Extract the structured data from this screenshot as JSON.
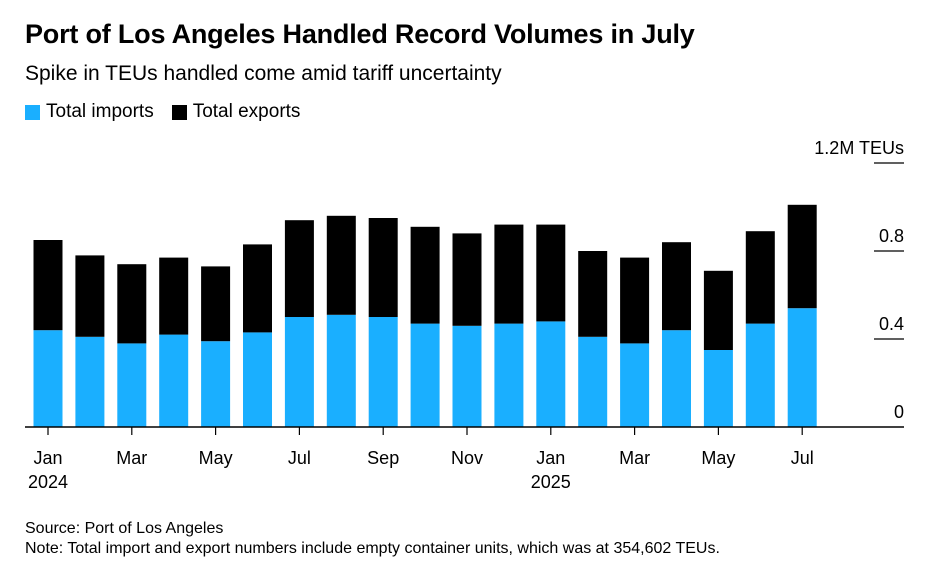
{
  "title": "Port of Los Angeles Handled Record Volumes in July",
  "subtitle": "Spike in TEUs handled come amid tariff uncertainty",
  "source": "Source: Port of Los Angeles",
  "note": "Note: Total import and export numbers include empty container units, which was at 354,602 TEUs.",
  "chart_data": {
    "type": "bar",
    "stacked": true,
    "categories": [
      "2024-01",
      "2024-02",
      "2024-03",
      "2024-04",
      "2024-05",
      "2024-06",
      "2024-07",
      "2024-08",
      "2024-09",
      "2024-10",
      "2024-11",
      "2024-12",
      "2025-01",
      "2025-02",
      "2025-03",
      "2025-04",
      "2025-05",
      "2025-06",
      "2025-07"
    ],
    "series": [
      {
        "name": "Total imports",
        "color": "#1aafff",
        "values": [
          0.44,
          0.41,
          0.38,
          0.42,
          0.39,
          0.43,
          0.5,
          0.51,
          0.5,
          0.47,
          0.46,
          0.47,
          0.48,
          0.41,
          0.38,
          0.44,
          0.35,
          0.47,
          0.54
        ]
      },
      {
        "name": "Total exports",
        "color": "#000000",
        "values": [
          0.41,
          0.37,
          0.36,
          0.35,
          0.34,
          0.4,
          0.44,
          0.45,
          0.45,
          0.44,
          0.42,
          0.45,
          0.44,
          0.39,
          0.39,
          0.4,
          0.36,
          0.42,
          0.47
        ]
      }
    ],
    "x_ticks": [
      {
        "label": "Jan",
        "index": 0,
        "year": "2024"
      },
      {
        "label": "Mar",
        "index": 2
      },
      {
        "label": "May",
        "index": 4
      },
      {
        "label": "Jul",
        "index": 6
      },
      {
        "label": "Sep",
        "index": 8
      },
      {
        "label": "Nov",
        "index": 10
      },
      {
        "label": "Jan",
        "index": 12,
        "year": "2025"
      },
      {
        "label": "Mar",
        "index": 14
      },
      {
        "label": "May",
        "index": 16
      },
      {
        "label": "Jul",
        "index": 18
      }
    ],
    "y_ticks": [
      {
        "value": 0,
        "label": "0"
      },
      {
        "value": 0.4,
        "label": "0.4"
      },
      {
        "value": 0.8,
        "label": "0.8"
      },
      {
        "value": 1.2,
        "label": "1.2M TEUs"
      }
    ],
    "ylim": [
      0,
      1.2
    ],
    "grid": false,
    "legend_position": "top-left"
  }
}
